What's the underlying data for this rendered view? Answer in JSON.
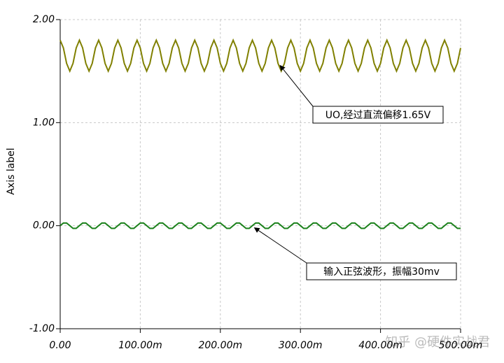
{
  "chart_data": {
    "type": "line",
    "ylabel": "Axis label",
    "x": [
      0,
      0.004,
      0.008,
      0.012,
      0.016,
      0.02,
      0.024,
      0.028,
      0.032,
      0.036,
      0.04,
      0.044,
      0.048,
      0.052,
      0.056,
      0.06,
      0.064,
      0.068,
      0.072,
      0.076,
      0.08,
      0.084,
      0.088,
      0.092,
      0.096,
      0.1,
      0.104,
      0.108,
      0.112,
      0.116,
      0.12,
      0.124,
      0.128,
      0.132,
      0.136,
      0.14,
      0.144,
      0.148,
      0.152,
      0.156,
      0.16,
      0.164,
      0.168,
      0.172,
      0.176,
      0.18,
      0.184,
      0.188,
      0.192,
      0.196,
      0.2,
      0.204,
      0.208,
      0.212,
      0.216,
      0.22,
      0.224,
      0.228,
      0.232,
      0.236,
      0.24,
      0.244,
      0.248,
      0.252,
      0.256,
      0.26,
      0.264,
      0.268,
      0.272,
      0.276,
      0.28,
      0.284,
      0.288,
      0.292,
      0.296,
      0.3,
      0.304,
      0.308,
      0.312,
      0.316,
      0.32,
      0.324,
      0.328,
      0.332,
      0.336,
      0.34,
      0.344,
      0.348,
      0.352,
      0.356,
      0.36,
      0.364,
      0.368,
      0.372,
      0.376,
      0.38,
      0.384,
      0.388,
      0.392,
      0.396,
      0.4,
      0.404,
      0.408,
      0.412,
      0.416,
      0.42,
      0.424,
      0.428,
      0.432,
      0.436,
      0.44,
      0.444,
      0.448,
      0.452,
      0.456,
      0.46,
      0.464,
      0.468,
      0.472,
      0.476,
      0.48,
      0.484,
      0.488,
      0.492,
      0.496,
      0.5
    ],
    "series": [
      {
        "color": "#808000",
        "values": [
          1.8,
          1.725,
          1.575,
          1.5,
          1.575,
          1.725,
          1.8,
          1.725,
          1.575,
          1.5,
          1.575,
          1.725,
          1.8,
          1.725,
          1.575,
          1.5,
          1.575,
          1.725,
          1.8,
          1.725,
          1.575,
          1.5,
          1.575,
          1.725,
          1.8,
          1.725,
          1.575,
          1.5,
          1.575,
          1.725,
          1.8,
          1.725,
          1.575,
          1.5,
          1.575,
          1.725,
          1.8,
          1.725,
          1.575,
          1.5,
          1.575,
          1.725,
          1.8,
          1.725,
          1.575,
          1.5,
          1.575,
          1.725,
          1.8,
          1.725,
          1.575,
          1.5,
          1.575,
          1.725,
          1.8,
          1.725,
          1.575,
          1.5,
          1.575,
          1.725,
          1.8,
          1.725,
          1.575,
          1.5,
          1.575,
          1.725,
          1.8,
          1.725,
          1.575,
          1.5,
          1.575,
          1.725,
          1.8,
          1.725,
          1.575,
          1.5,
          1.575,
          1.725,
          1.8,
          1.725,
          1.575,
          1.5,
          1.575,
          1.725,
          1.8,
          1.725,
          1.575,
          1.5,
          1.575,
          1.725,
          1.8,
          1.725,
          1.575,
          1.5,
          1.575,
          1.725,
          1.8,
          1.725,
          1.575,
          1.5,
          1.575,
          1.725,
          1.8,
          1.725,
          1.575,
          1.5,
          1.575,
          1.725,
          1.8,
          1.725,
          1.575,
          1.5,
          1.575,
          1.725,
          1.8,
          1.725,
          1.575,
          1.5,
          1.575,
          1.725,
          1.8,
          1.725,
          1.575,
          1.5,
          1.575,
          1.725
        ]
      },
      {
        "color": "#1a801a",
        "values": [
          0,
          0.026,
          0.026,
          0,
          -0.026,
          -0.026,
          0,
          0.026,
          0.026,
          0,
          -0.026,
          -0.026,
          0,
          0.026,
          0.026,
          0,
          -0.026,
          -0.026,
          0,
          0.026,
          0.026,
          0,
          -0.026,
          -0.026,
          0,
          0.026,
          0.026,
          0,
          -0.026,
          -0.026,
          0,
          0.026,
          0.026,
          0,
          -0.026,
          -0.026,
          0,
          0.026,
          0.026,
          0,
          -0.026,
          -0.026,
          0,
          0.026,
          0.026,
          0,
          -0.026,
          -0.026,
          0,
          0.026,
          0.026,
          0,
          -0.026,
          -0.026,
          0,
          0.026,
          0.026,
          0,
          -0.026,
          -0.026,
          0,
          0.026,
          0.026,
          0,
          -0.026,
          -0.026,
          0,
          0.026,
          0.026,
          0,
          -0.026,
          -0.026,
          0,
          0.026,
          0.026,
          0,
          -0.026,
          -0.026,
          0,
          0.026,
          0.026,
          0,
          -0.026,
          -0.026,
          0,
          0.026,
          0.026,
          0,
          -0.026,
          -0.026,
          0,
          0.026,
          0.026,
          0,
          -0.026,
          -0.026,
          0,
          0.026,
          0.026,
          0,
          -0.026,
          -0.026,
          0,
          0.026,
          0.026,
          0,
          -0.026,
          -0.026,
          0,
          0.026,
          0.026,
          0,
          -0.026,
          -0.026,
          0,
          0.026,
          0.026,
          0,
          -0.026,
          -0.026,
          0,
          0.026,
          0.026,
          0,
          -0.026,
          -0.026
        ]
      }
    ],
    "xlim": [
      0,
      0.5
    ],
    "xticks": [
      {
        "value": 0,
        "label": "0.00"
      },
      {
        "value": 0.1,
        "label": "100.00m"
      },
      {
        "value": 0.2,
        "label": "200.00m"
      },
      {
        "value": 0.3,
        "label": "300.00m"
      },
      {
        "value": 0.4,
        "label": "400.00m"
      },
      {
        "value": 0.5,
        "label": "500.00m"
      }
    ],
    "ylim": [
      -1,
      2
    ],
    "yticks": [
      {
        "value": -1,
        "label": "-1.00"
      },
      {
        "value": 0,
        "label": "0.00"
      },
      {
        "value": 1,
        "label": "1.00"
      },
      {
        "value": 2,
        "label": "2.00"
      }
    ],
    "grid": true,
    "annotations": [
      {
        "text": "UO,经过直流偏移1.65V",
        "series": 0,
        "point": 68
      },
      {
        "text": "输入正弦波形，振幅30mv",
        "series": 1,
        "point": 60
      }
    ],
    "watermark": "知乎 @硬件实战君"
  }
}
